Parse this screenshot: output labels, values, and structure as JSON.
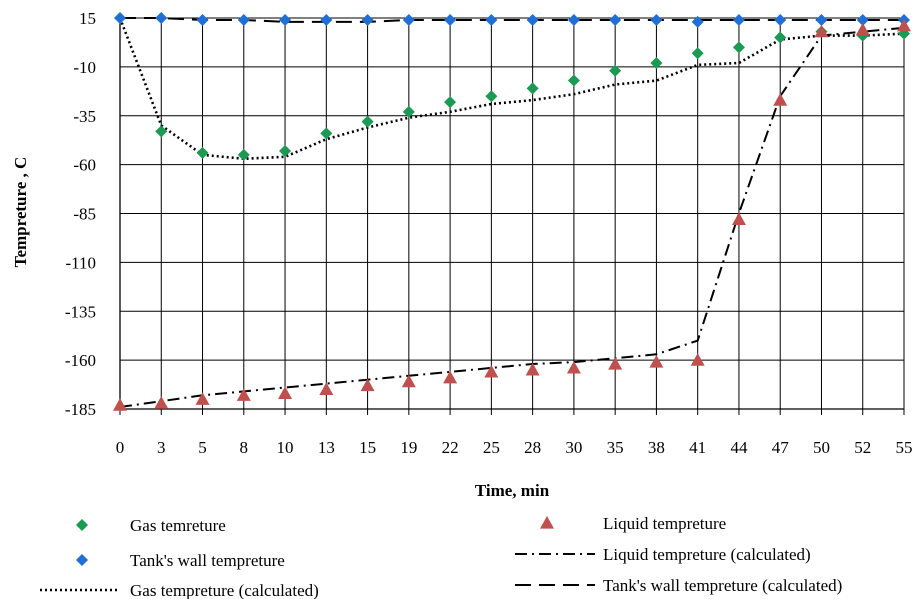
{
  "chart_data": {
    "type": "line",
    "title": "",
    "xlabel": "Time, min",
    "ylabel": "Tempreture , C",
    "categories": [
      "0",
      "3",
      "5",
      "8",
      "10",
      "13",
      "15",
      "19",
      "22",
      "25",
      "28",
      "30",
      "35",
      "38",
      "41",
      "44",
      "47",
      "50",
      "52",
      "55"
    ],
    "yticks": [
      15,
      -10,
      -35,
      -60,
      -85,
      -110,
      -135,
      -160,
      -185
    ],
    "ylim": [
      -185,
      15
    ],
    "grid": true,
    "legend_position": "bottom",
    "series": [
      {
        "name": "Gas temreture",
        "kind": "markers",
        "marker": "diamond",
        "color": "#1a9a52",
        "values": [
          null,
          -43,
          -54,
          -55,
          -53,
          -44,
          -38,
          -33,
          -28,
          -25,
          -21,
          -17,
          -12,
          -8,
          -3,
          0,
          5,
          8,
          6,
          7
        ]
      },
      {
        "name": "Tank's wall tempreture",
        "kind": "markers",
        "marker": "diamond",
        "color": "#1f6fd6",
        "values": [
          15,
          15,
          14,
          14,
          14,
          14,
          14,
          14,
          14,
          14,
          14,
          14,
          14,
          14,
          13,
          14,
          14,
          14,
          14,
          14
        ]
      },
      {
        "name": "Gas tempreture (calculated)",
        "kind": "line",
        "dash": "dotted",
        "color": "#000000",
        "values": [
          15,
          -40,
          -55,
          -57,
          -56,
          -47,
          -41,
          -36,
          -33,
          -29,
          -27,
          -24,
          -19,
          -17,
          -9,
          -8,
          4,
          6,
          6,
          7
        ]
      },
      {
        "name": "Liquid tempreture",
        "kind": "markers",
        "marker": "triangle",
        "color": "#c0504d",
        "values": [
          -183,
          -182,
          -180,
          -178,
          -177,
          -175,
          -173,
          -171,
          -169,
          -166,
          -165,
          -164,
          -162,
          -161,
          -160,
          -88,
          -27,
          8,
          9,
          11
        ]
      },
      {
        "name": "Liquid tempreture (calculated)",
        "kind": "line",
        "dash": "dashdot",
        "color": "#000000",
        "values": [
          -184,
          -181,
          -178,
          -176,
          -174,
          -172,
          -170,
          -168,
          -166,
          -164,
          -162,
          -161,
          -159,
          -157,
          -150,
          -85,
          -25,
          6,
          8,
          10
        ]
      },
      {
        "name": "Tank's wall tempreture (calculated)",
        "kind": "line",
        "dash": "dashed",
        "color": "#000000",
        "values": [
          15,
          15,
          14,
          14,
          13,
          13,
          13,
          14,
          14,
          14,
          14,
          14,
          14,
          14,
          14,
          14,
          14,
          14,
          14,
          14
        ]
      }
    ]
  }
}
